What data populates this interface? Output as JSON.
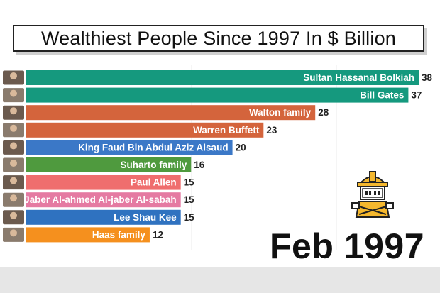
{
  "chart_data": {
    "type": "bar",
    "orientation": "horizontal",
    "title": "Wealthiest People Since 1997 In $ Billion",
    "period_label": "Feb 1997",
    "categories": [
      "Sultan Hassanal Bolkiah",
      "Bill Gates",
      "Walton family",
      "Warren Buffett",
      "King Faud Bin Abdul Aziz Alsaud",
      "Suharto family",
      "Paul Allen",
      "Sheikh Jaber Al-ahmed Al-jaber Al-sabah",
      "Lee Shau Kee",
      "Haas family"
    ],
    "values": [
      38,
      37,
      28,
      23,
      20,
      16,
      15,
      15,
      15,
      12
    ],
    "colors": [
      "#15997e",
      "#15997e",
      "#d4643c",
      "#d4643c",
      "#3b78c7",
      "#4f9a3e",
      "#ef6e6e",
      "#e57aa2",
      "#2f72c0",
      "#f5901e"
    ],
    "grid": true,
    "legend": "none"
  },
  "icons": {
    "portrait": "portrait-icon",
    "mascot": "robot-mascot-icon"
  }
}
